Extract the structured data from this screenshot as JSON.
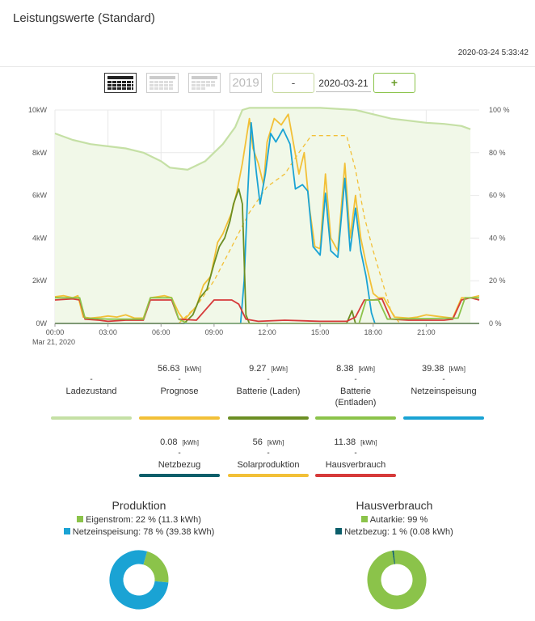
{
  "header": {
    "title": "Leistungswerte (Standard)",
    "timestamp": "2020-03-24 5:33:42"
  },
  "toolbar": {
    "icons": [
      "day-calendar-icon",
      "week-calendar-icon",
      "month-calendar-icon"
    ],
    "year_label": "2019",
    "minus_label": "-",
    "date_value": "2020-03-21",
    "plus_label": "+"
  },
  "colors": {
    "ladezustand": "#c5e0a5",
    "prognose": "#f2c037",
    "batterie_laden": "#6b8e23",
    "batterie_entladen": "#8bc34a",
    "netzeinspeisung": "#1aa3d4",
    "netzbezug": "#0b5e6a",
    "solarproduktion": "#f2c037",
    "hausverbrauch": "#d63a3a"
  },
  "chart_data": {
    "type": "line",
    "title": "",
    "xlabel": "",
    "date_label": "Mar 21, 2020",
    "x_ticks": [
      "00:00",
      "03:00",
      "06:00",
      "09:00",
      "12:00",
      "15:00",
      "18:00",
      "21:00"
    ],
    "y_left_ticks": [
      "0W",
      "2kW",
      "4kW",
      "6kW",
      "8kW",
      "10kW"
    ],
    "y_right_ticks": [
      "0 %",
      "20 %",
      "40 %",
      "60 %",
      "80 %",
      "100 %"
    ],
    "ylim_left_kw": [
      0,
      10
    ],
    "ylim_right_pct": [
      0,
      100
    ],
    "x_range_hours": [
      0,
      24
    ],
    "grid": true,
    "series": [
      {
        "key": "ladezustand",
        "axis": "right",
        "style": "area",
        "points": [
          [
            0,
            89
          ],
          [
            1,
            86
          ],
          [
            2,
            84
          ],
          [
            3,
            83
          ],
          [
            4,
            82
          ],
          [
            5,
            80
          ],
          [
            6,
            76
          ],
          [
            6.5,
            73
          ],
          [
            7.5,
            72
          ],
          [
            8.5,
            76
          ],
          [
            9.5,
            84
          ],
          [
            10.2,
            92
          ],
          [
            10.6,
            100
          ],
          [
            11,
            101
          ],
          [
            12,
            101
          ],
          [
            15,
            101
          ],
          [
            17,
            100
          ],
          [
            18,
            98
          ],
          [
            19,
            96
          ],
          [
            20,
            95
          ],
          [
            21,
            94
          ],
          [
            22,
            93.5
          ],
          [
            23,
            92.5
          ],
          [
            23.5,
            91
          ]
        ]
      },
      {
        "key": "prognose",
        "axis": "left",
        "style": "dashed",
        "points": [
          [
            0,
            0
          ],
          [
            7,
            0
          ],
          [
            8,
            0.8
          ],
          [
            9,
            2
          ],
          [
            10,
            3.6
          ],
          [
            11,
            5.2
          ],
          [
            12,
            6.4
          ],
          [
            13,
            7
          ],
          [
            13.8,
            8
          ],
          [
            14.5,
            8.8
          ],
          [
            15.5,
            8.8
          ],
          [
            16.5,
            8.8
          ],
          [
            17,
            7.2
          ],
          [
            17.5,
            5
          ],
          [
            18,
            3.4
          ],
          [
            18.5,
            2
          ],
          [
            19,
            0.6
          ],
          [
            19.5,
            0
          ],
          [
            24,
            0
          ]
        ]
      },
      {
        "key": "solarproduktion",
        "axis": "left",
        "style": "line",
        "points": [
          [
            0,
            1.25
          ],
          [
            0.5,
            1.3
          ],
          [
            1,
            1.2
          ],
          [
            1.3,
            1.3
          ],
          [
            1.6,
            0.3
          ],
          [
            2,
            0.25
          ],
          [
            2.6,
            0.3
          ],
          [
            3,
            0.35
          ],
          [
            3.5,
            0.3
          ],
          [
            4,
            0.4
          ],
          [
            4.5,
            0.25
          ],
          [
            5,
            0.25
          ],
          [
            5.4,
            1.2
          ],
          [
            5.8,
            1.25
          ],
          [
            6.2,
            1.3
          ],
          [
            6.6,
            1.2
          ],
          [
            7,
            0.5
          ],
          [
            7.3,
            0.15
          ],
          [
            8,
            0.8
          ],
          [
            8.4,
            1.8
          ],
          [
            8.8,
            2.2
          ],
          [
            9.2,
            3.8
          ],
          [
            9.5,
            4.2
          ],
          [
            10,
            5.2
          ],
          [
            10.3,
            6.2
          ],
          [
            10.6,
            7.5
          ],
          [
            11,
            9.6
          ],
          [
            11.2,
            8.2
          ],
          [
            11.5,
            7.5
          ],
          [
            11.8,
            6.5
          ],
          [
            12,
            8.5
          ],
          [
            12.4,
            9.6
          ],
          [
            12.8,
            9.3
          ],
          [
            13.2,
            9.8
          ],
          [
            13.5,
            8.4
          ],
          [
            13.8,
            7
          ],
          [
            14.1,
            8
          ],
          [
            14.4,
            5.4
          ],
          [
            14.7,
            3.6
          ],
          [
            15,
            3.5
          ],
          [
            15.3,
            7
          ],
          [
            15.6,
            4
          ],
          [
            16,
            3.4
          ],
          [
            16.4,
            7.5
          ],
          [
            16.7,
            4
          ],
          [
            17,
            6
          ],
          [
            17.3,
            4
          ],
          [
            17.6,
            2.8
          ],
          [
            18,
            1.4
          ],
          [
            18.3,
            1.2
          ],
          [
            18.6,
            1.2
          ],
          [
            19.2,
            0.3
          ],
          [
            20,
            0.25
          ],
          [
            20.5,
            0.3
          ],
          [
            21,
            0.4
          ],
          [
            21.5,
            0.35
          ],
          [
            22,
            0.3
          ],
          [
            22.5,
            0.25
          ],
          [
            23,
            1.2
          ],
          [
            23.5,
            1.2
          ],
          [
            24,
            1.3
          ]
        ]
      },
      {
        "key": "netzeinspeisung",
        "axis": "left",
        "style": "line",
        "points": [
          [
            0,
            0
          ],
          [
            10.5,
            0
          ],
          [
            10.7,
            2
          ],
          [
            10.9,
            6
          ],
          [
            11.1,
            9.4
          ],
          [
            11.4,
            7
          ],
          [
            11.6,
            5.6
          ],
          [
            11.9,
            7
          ],
          [
            12.2,
            8.9
          ],
          [
            12.5,
            8.5
          ],
          [
            12.9,
            9.1
          ],
          [
            13.3,
            8.4
          ],
          [
            13.6,
            6.3
          ],
          [
            14,
            6.5
          ],
          [
            14.3,
            6.2
          ],
          [
            14.6,
            3.6
          ],
          [
            15,
            3.2
          ],
          [
            15.3,
            6.1
          ],
          [
            15.6,
            3.4
          ],
          [
            16,
            3.1
          ],
          [
            16.4,
            6.8
          ],
          [
            16.7,
            3.4
          ],
          [
            17,
            5.4
          ],
          [
            17.3,
            3.4
          ],
          [
            17.6,
            2.2
          ],
          [
            17.9,
            0.5
          ],
          [
            18.1,
            0
          ],
          [
            24,
            0
          ]
        ]
      },
      {
        "key": "batterie_laden",
        "axis": "left",
        "style": "line",
        "points": [
          [
            0,
            0
          ],
          [
            7.3,
            0
          ],
          [
            7.8,
            0.4
          ],
          [
            8.2,
            1.2
          ],
          [
            8.6,
            1.6
          ],
          [
            9,
            2.8
          ],
          [
            9.3,
            3.6
          ],
          [
            9.6,
            4
          ],
          [
            9.9,
            4.8
          ],
          [
            10.1,
            5.6
          ],
          [
            10.4,
            6.3
          ],
          [
            10.6,
            5.6
          ],
          [
            10.8,
            0.4
          ],
          [
            11,
            0
          ],
          [
            16.5,
            0
          ],
          [
            16.8,
            0.6
          ],
          [
            17,
            0
          ],
          [
            24,
            0
          ]
        ]
      },
      {
        "key": "hausverbrauch",
        "axis": "left",
        "style": "line",
        "points": [
          [
            0,
            1.1
          ],
          [
            1,
            1.15
          ],
          [
            1.4,
            1.1
          ],
          [
            1.7,
            0.2
          ],
          [
            2.5,
            0.15
          ],
          [
            3,
            0.1
          ],
          [
            4,
            0.15
          ],
          [
            5,
            0.15
          ],
          [
            5.4,
            1.1
          ],
          [
            6,
            1.1
          ],
          [
            6.6,
            1.1
          ],
          [
            7,
            0.2
          ],
          [
            8,
            0.15
          ],
          [
            9,
            1.1
          ],
          [
            10,
            1.1
          ],
          [
            10.4,
            0.9
          ],
          [
            10.8,
            0.2
          ],
          [
            11.5,
            0.1
          ],
          [
            13,
            0.15
          ],
          [
            15,
            0.1
          ],
          [
            16.5,
            0.1
          ],
          [
            17,
            0.3
          ],
          [
            17.5,
            1.1
          ],
          [
            18,
            1.1
          ],
          [
            18.5,
            1.15
          ],
          [
            19,
            0.2
          ],
          [
            20,
            0.15
          ],
          [
            22,
            0.15
          ],
          [
            22.5,
            0.2
          ],
          [
            23,
            1.1
          ],
          [
            23.5,
            1.2
          ],
          [
            24,
            1.1
          ]
        ]
      },
      {
        "key": "batterie_entladen",
        "axis": "left",
        "style": "line",
        "points": [
          [
            0,
            1.2
          ],
          [
            1,
            1.2
          ],
          [
            1.4,
            1.2
          ],
          [
            1.7,
            0.25
          ],
          [
            3,
            0.2
          ],
          [
            5,
            0.2
          ],
          [
            5.4,
            1.2
          ],
          [
            6.6,
            1.2
          ],
          [
            7,
            0.2
          ],
          [
            7.5,
            0
          ],
          [
            17.2,
            0
          ],
          [
            17.6,
            1.1
          ],
          [
            18.3,
            1.1
          ],
          [
            18.8,
            0.2
          ],
          [
            22.8,
            0.25
          ],
          [
            23.2,
            1.2
          ],
          [
            24,
            1.2
          ]
        ]
      }
    ]
  },
  "stats_row1": [
    {
      "key": "ladezustand",
      "value": "",
      "unit": "",
      "dash": "-",
      "label": "Ladezustand"
    },
    {
      "key": "prognose",
      "value": "56.63",
      "unit": "[kWh]",
      "dash": "-",
      "label": "Prognose"
    },
    {
      "key": "batterie_laden",
      "value": "9.27",
      "unit": "[kWh]",
      "dash": "-",
      "label": "Batterie (Laden)"
    },
    {
      "key": "batterie_entladen",
      "value": "8.38",
      "unit": "[kWh]",
      "dash": "-",
      "label": "Batterie",
      "label2": "(Entladen)"
    },
    {
      "key": "netzeinspeisung",
      "value": "39.38",
      "unit": "[kWh]",
      "dash": "-",
      "label": "Netzeinspeisung"
    }
  ],
  "stats_row2": [
    {
      "key": "netzbezug",
      "value": "0.08",
      "unit": "[kWh]",
      "dash": "-",
      "label": "Netzbezug"
    },
    {
      "key": "solarproduktion",
      "value": "56",
      "unit": "[kWh]",
      "dash": "-",
      "label": "Solarproduktion"
    },
    {
      "key": "hausverbrauch",
      "value": "11.38",
      "unit": "[kWh]",
      "dash": "-",
      "label": "Hausverbrauch"
    }
  ],
  "produktion": {
    "title": "Produktion",
    "legend": [
      {
        "color": "#8bc34a",
        "text": "Eigenstrom: 22 % (11.3 kWh)"
      },
      {
        "color": "#1aa3d4",
        "text": "Netzeinspeisung: 78 % (39.38 kWh)"
      }
    ],
    "slices": [
      {
        "name": "Eigenstrom",
        "percent": 22,
        "color": "#8bc34a"
      },
      {
        "name": "Netzeinspeisung",
        "percent": 78,
        "color": "#1aa3d4"
      }
    ]
  },
  "hausverbrauch": {
    "title": "Hausverbrauch",
    "legend": [
      {
        "color": "#8bc34a",
        "text": "Autarkie: 99 %"
      },
      {
        "color": "#0b5e6a",
        "text": "Netzbezug: 1 % (0.08 kWh)"
      }
    ],
    "slices": [
      {
        "name": "Autarkie",
        "percent": 99,
        "color": "#8bc34a"
      },
      {
        "name": "Netzbezug",
        "percent": 1,
        "color": "#0b5e6a"
      }
    ]
  }
}
